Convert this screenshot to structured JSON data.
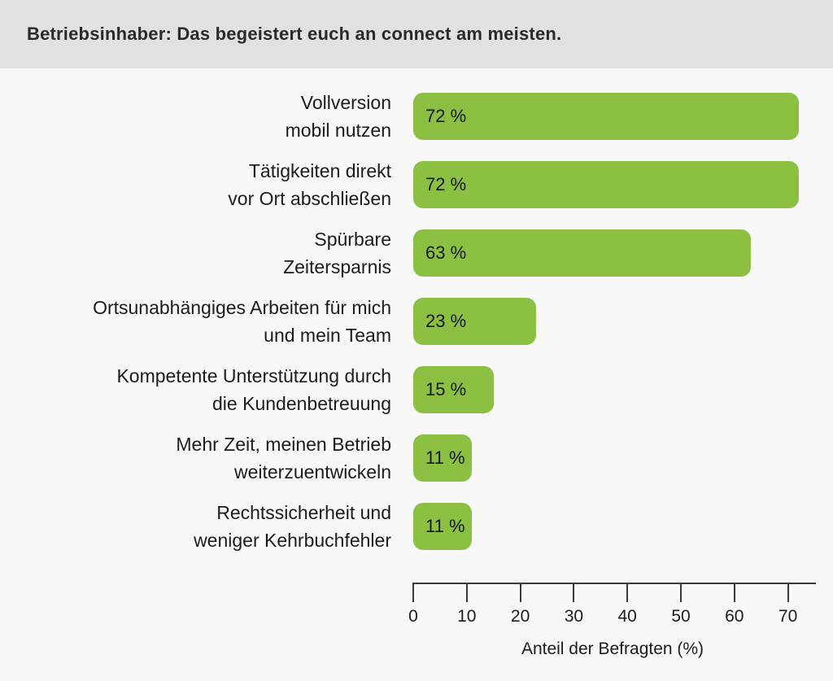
{
  "header": {
    "title": "Betriebsinhaber: Das begeistert euch an connect am meisten."
  },
  "chart_data": {
    "type": "bar",
    "orientation": "horizontal",
    "title": "Betriebsinhaber: Das begeistert euch an connect am meisten.",
    "categories": [
      "Vollversion mobil nutzen",
      "Tätigkeiten direkt vor Ort abschließen",
      "Spürbare Zeitersparnis",
      "Ortsunabhängiges Arbeiten für mich und mein Team",
      "Kompetente Unterstützung durch die Kundenbetreuung",
      "Mehr Zeit, meinen Betrieb weiterzuentwickeln",
      "Rechtssicherheit und weniger Kehrbuchfehler"
    ],
    "label_lines": [
      [
        "Vollversion",
        "mobil nutzen"
      ],
      [
        "Tätigkeiten direkt",
        "vor Ort abschließen"
      ],
      [
        "Spürbare",
        "Zeitersparnis"
      ],
      [
        "Ortsunabhängiges Arbeiten für mich",
        "und mein Team"
      ],
      [
        "Kompetente Unterstützung durch",
        "die Kundenbetreuung"
      ],
      [
        "Mehr Zeit, meinen Betrieb",
        "weiterzuentwickeln"
      ],
      [
        "Rechtssicherheit und",
        "weniger Kehrbuchfehler"
      ]
    ],
    "values": [
      72,
      72,
      63,
      23,
      15,
      11,
      11
    ],
    "value_labels": [
      "72 %",
      "72 %",
      "63 %",
      "23 %",
      "15 %",
      "11 %",
      "11 %"
    ],
    "xlabel": "Anteil der Befragten (%)",
    "xticks": [
      0,
      10,
      20,
      30,
      40,
      50,
      60,
      70
    ],
    "xlim": [
      0,
      75
    ],
    "grid": false,
    "legend": "none",
    "bar_color": "#8bc043"
  },
  "colors": {
    "header_band": "#e1e1e1",
    "background": "#f8f8f8",
    "bar": "#8bc043",
    "text": "#1c1c1c",
    "axis": "#3a3a3a"
  }
}
